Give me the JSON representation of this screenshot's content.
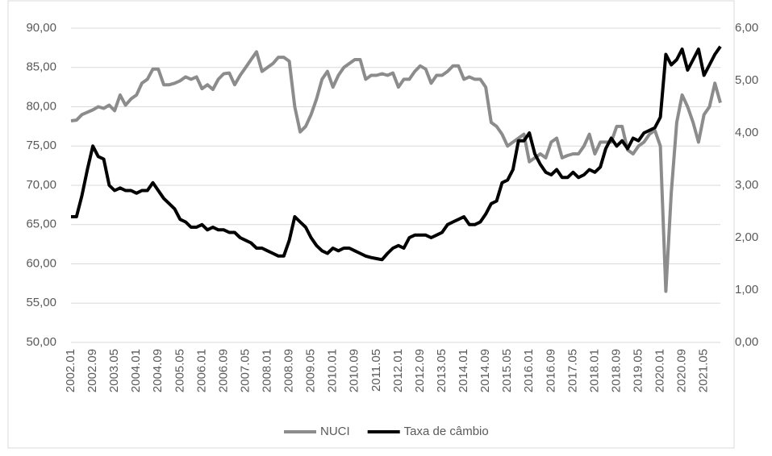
{
  "chart_data": {
    "type": "line",
    "categories": [
      "2002.01",
      null,
      null,
      null,
      "2002.09",
      null,
      null,
      null,
      "2003.05",
      null,
      null,
      null,
      "2004.01",
      null,
      null,
      null,
      "2004.09",
      null,
      null,
      null,
      "2005.05",
      null,
      null,
      null,
      "2006.01",
      null,
      null,
      null,
      "2006.09",
      null,
      null,
      null,
      "2007.05",
      null,
      null,
      null,
      "2008.01",
      null,
      null,
      null,
      "2008.09",
      null,
      null,
      null,
      "2009.05",
      null,
      null,
      null,
      "2010.01",
      null,
      null,
      null,
      "2010.09",
      null,
      null,
      null,
      "2011.05",
      null,
      null,
      null,
      "2012.01",
      null,
      null,
      null,
      "2012.09",
      null,
      null,
      null,
      "2013.05",
      null,
      null,
      null,
      "2014.01",
      null,
      null,
      null,
      "2014.09",
      null,
      null,
      null,
      "2015.05",
      null,
      null,
      null,
      "2016.01",
      null,
      null,
      null,
      "2016.09",
      null,
      null,
      null,
      "2017.05",
      null,
      null,
      null,
      "2018.01",
      null,
      null,
      null,
      "2018.09",
      null,
      null,
      null,
      "2019.05",
      null,
      null,
      null,
      "2020.01",
      null,
      null,
      null,
      "2020.09",
      null,
      null,
      null,
      "2021.05",
      null,
      null,
      null
    ],
    "series": [
      {
        "name": "NUCI",
        "color": "#8c8c8c",
        "axis": "y",
        "values": [
          78.2,
          78.3,
          79,
          79.3,
          79.6,
          80,
          79.8,
          80.2,
          79.5,
          81.5,
          80.2,
          81,
          81.5,
          83,
          83.5,
          84.8,
          84.8,
          82.8,
          82.8,
          83,
          83.3,
          83.8,
          83.5,
          83.8,
          82.3,
          82.8,
          82.2,
          83.5,
          84.2,
          84.3,
          82.8,
          84,
          85,
          86,
          87,
          84.5,
          85,
          85.5,
          86.3,
          86.3,
          85.8,
          80,
          76.8,
          77.5,
          79,
          81,
          83.5,
          84.5,
          82.5,
          84,
          85,
          85.5,
          86,
          86,
          83.5,
          84,
          84,
          84.2,
          84,
          84.3,
          82.5,
          83.5,
          83.5,
          84.5,
          85.2,
          84.8,
          83,
          84,
          84,
          84.5,
          85.2,
          85.2,
          83.5,
          83.8,
          83.5,
          83.5,
          82.5,
          78,
          77.5,
          76.5,
          75,
          75.5,
          76,
          76.5,
          73,
          73.5,
          74,
          73.5,
          75.5,
          76,
          73.5,
          73.8,
          74,
          74,
          75,
          76.5,
          74,
          75.5,
          75.5,
          75.5,
          77.5,
          77.5,
          74.5,
          74,
          75,
          75.5,
          76.5,
          77,
          75,
          56.5,
          69,
          78,
          81.5,
          80,
          78,
          75.5,
          79,
          80,
          83,
          80.5
        ]
      },
      {
        "name": "Taxa de câmbio",
        "color": "#000000",
        "axis": "y2",
        "values": [
          2.4,
          2.4,
          2.8,
          3.3,
          3.75,
          3.55,
          3.5,
          3.0,
          2.9,
          2.95,
          2.9,
          2.9,
          2.85,
          2.9,
          2.9,
          3.05,
          2.9,
          2.75,
          2.65,
          2.55,
          2.35,
          2.3,
          2.2,
          2.2,
          2.25,
          2.15,
          2.2,
          2.15,
          2.15,
          2.1,
          2.1,
          2.0,
          1.95,
          1.9,
          1.8,
          1.8,
          1.75,
          1.7,
          1.65,
          1.65,
          1.95,
          2.4,
          2.3,
          2.2,
          2.0,
          1.85,
          1.75,
          1.7,
          1.8,
          1.75,
          1.8,
          1.8,
          1.75,
          1.7,
          1.65,
          1.62,
          1.6,
          1.58,
          1.7,
          1.8,
          1.85,
          1.8,
          2.0,
          2.05,
          2.05,
          2.05,
          2.0,
          2.05,
          2.1,
          2.25,
          2.3,
          2.35,
          2.4,
          2.25,
          2.25,
          2.3,
          2.45,
          2.65,
          2.7,
          3.05,
          3.1,
          3.3,
          3.85,
          3.85,
          4.0,
          3.6,
          3.4,
          3.25,
          3.2,
          3.3,
          3.15,
          3.15,
          3.25,
          3.15,
          3.2,
          3.3,
          3.25,
          3.35,
          3.7,
          3.9,
          3.75,
          3.85,
          3.7,
          3.9,
          3.85,
          4.0,
          4.05,
          4.1,
          4.3,
          5.5,
          5.3,
          5.4,
          5.6,
          5.2,
          5.4,
          5.6,
          5.1,
          5.3,
          5.5,
          5.65
        ]
      }
    ],
    "ylim": [
      50,
      90
    ],
    "yticks": [
      {
        "value": 50,
        "label": "50,00"
      },
      {
        "value": 55,
        "label": "55,00"
      },
      {
        "value": 60,
        "label": "60,00"
      },
      {
        "value": 65,
        "label": "65,00"
      },
      {
        "value": 70,
        "label": "70,00"
      },
      {
        "value": 75,
        "label": "75,00"
      },
      {
        "value": 80,
        "label": "80,00"
      },
      {
        "value": 85,
        "label": "85,00"
      },
      {
        "value": 90,
        "label": "90,00"
      }
    ],
    "y2lim": [
      0,
      6
    ],
    "y2ticks": [
      {
        "value": 0,
        "label": "0,00"
      },
      {
        "value": 1,
        "label": "1,00"
      },
      {
        "value": 2,
        "label": "2,00"
      },
      {
        "value": 3,
        "label": "3,00"
      },
      {
        "value": 4,
        "label": "4,00"
      },
      {
        "value": 5,
        "label": "5,00"
      },
      {
        "value": 6,
        "label": "6,00"
      }
    ],
    "grid": true,
    "legend": "bottom"
  }
}
